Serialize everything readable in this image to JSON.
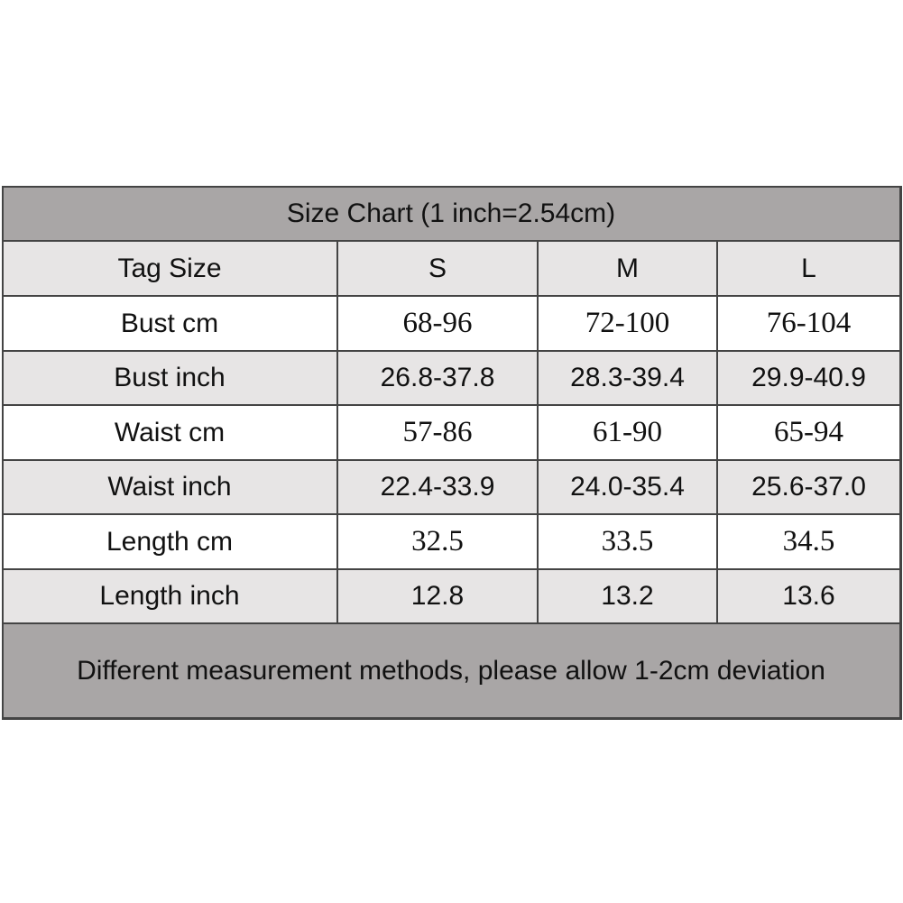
{
  "table": {
    "title": "Size Chart (1 inch=2.54cm)",
    "header": [
      "Tag Size",
      "S",
      "M",
      "L"
    ],
    "rows": [
      [
        "Bust cm",
        "68-96",
        "72-100",
        "76-104"
      ],
      [
        "Bust inch",
        "26.8-37.8",
        "28.3-39.4",
        "29.9-40.9"
      ],
      [
        "Waist cm",
        "57-86",
        "61-90",
        "65-94"
      ],
      [
        "Waist inch",
        "22.4-33.9",
        "24.0-35.4",
        "25.6-37.0"
      ],
      [
        "Length cm",
        "32.5",
        "33.5",
        "34.5"
      ],
      [
        "Length inch",
        "12.8",
        "13.2",
        "13.6"
      ]
    ],
    "footer": "Different measurement methods, please allow 1-2cm deviation"
  }
}
